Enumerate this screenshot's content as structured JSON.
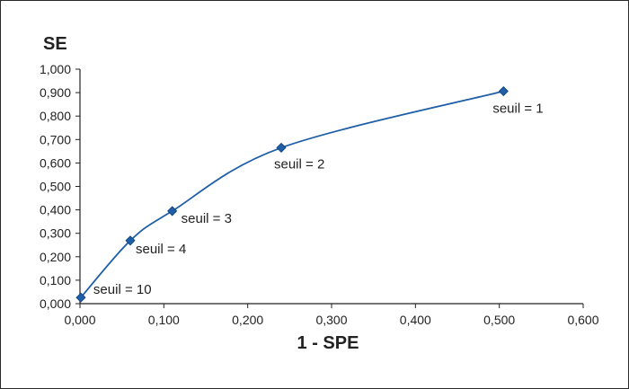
{
  "chart_data": {
    "type": "line",
    "xlabel": "1 - SPE",
    "ylabel": "SE",
    "xlim": [
      0,
      0.6
    ],
    "ylim": [
      0,
      1.0
    ],
    "x_ticks": [
      "0,000",
      "0,100",
      "0,200",
      "0,300",
      "0,400",
      "0,500",
      "0,600"
    ],
    "y_ticks": [
      "0,000",
      "0,100",
      "0,200",
      "0,300",
      "0,400",
      "0,500",
      "0,600",
      "0,700",
      "0,800",
      "0,900",
      "1,000"
    ],
    "x_tick_values": [
      0,
      0.1,
      0.2,
      0.3,
      0.4,
      0.5,
      0.6
    ],
    "y_tick_values": [
      0,
      0.1,
      0.2,
      0.3,
      0.4,
      0.5,
      0.6,
      0.7,
      0.8,
      0.9,
      1.0
    ],
    "grid": false,
    "line_color": "#1f5fa8",
    "marker_color": "#1f5fa8",
    "points": [
      {
        "x": 0.001,
        "y": 0.026,
        "label": "seuil = 10"
      },
      {
        "x": 0.06,
        "y": 0.269,
        "label": "seuil = 4"
      },
      {
        "x": 0.11,
        "y": 0.395,
        "label": "seuil = 3"
      },
      {
        "x": 0.24,
        "y": 0.665,
        "label": "seuil = 2"
      },
      {
        "x": 0.505,
        "y": 0.906,
        "label": "seuil = 1"
      }
    ]
  }
}
